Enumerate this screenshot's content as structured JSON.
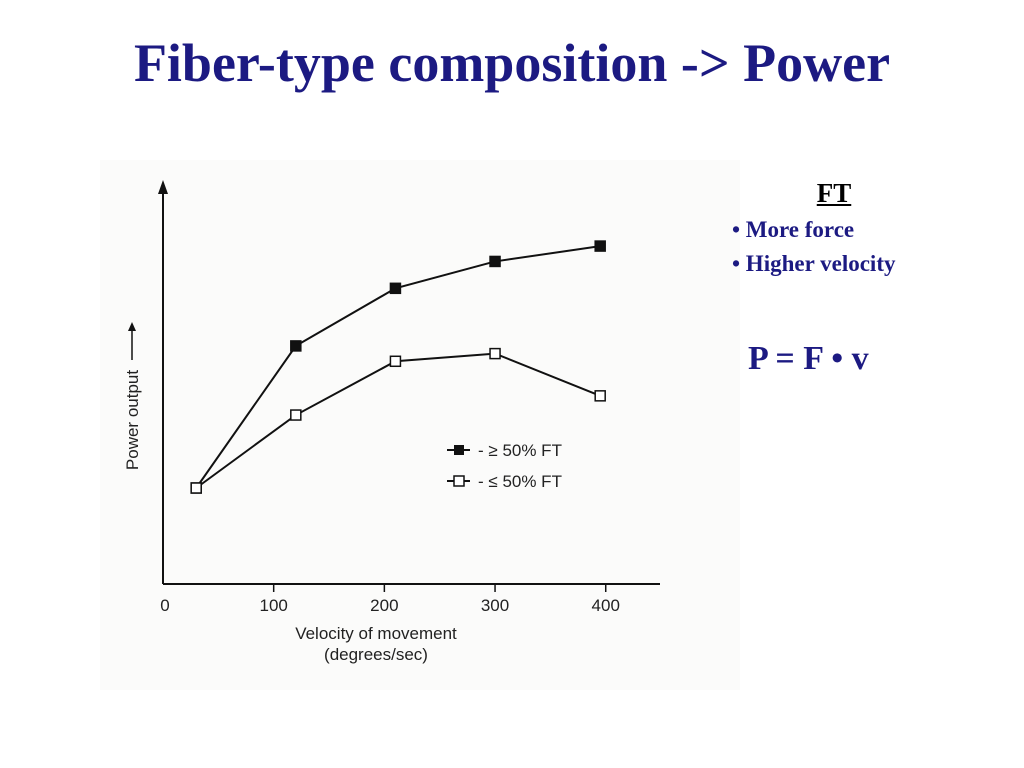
{
  "slide": {
    "title": "Fiber-type composition -> Power",
    "sidebar": {
      "heading": "FT",
      "bullets": [
        "• More force",
        "• Higher velocity"
      ],
      "formula": "P = F • v"
    },
    "colors": {
      "title": "#1c1a82",
      "chart_ink": "#111111"
    }
  },
  "chart_data": {
    "type": "line",
    "title": "",
    "xlabel": "Velocity of movement",
    "xlabel_unit": "(degrees/sec)",
    "ylabel": "Power output",
    "x_ticks": [
      0,
      100,
      200,
      300,
      400
    ],
    "xlim": [
      0,
      440
    ],
    "ylim": [
      0,
      100
    ],
    "y_ticks_shown": false,
    "grid": false,
    "legend_position": "right-middle",
    "series": [
      {
        "name": "- ≥ 50% FT",
        "marker": "filled-square",
        "x": [
          30,
          120,
          210,
          300,
          395
        ],
        "y": [
          25,
          62,
          77,
          84,
          88
        ]
      },
      {
        "name": "- ≤ 50% FT",
        "marker": "open-square",
        "x": [
          30,
          120,
          210,
          300,
          395
        ],
        "y": [
          25,
          44,
          58,
          60,
          49
        ]
      }
    ]
  }
}
